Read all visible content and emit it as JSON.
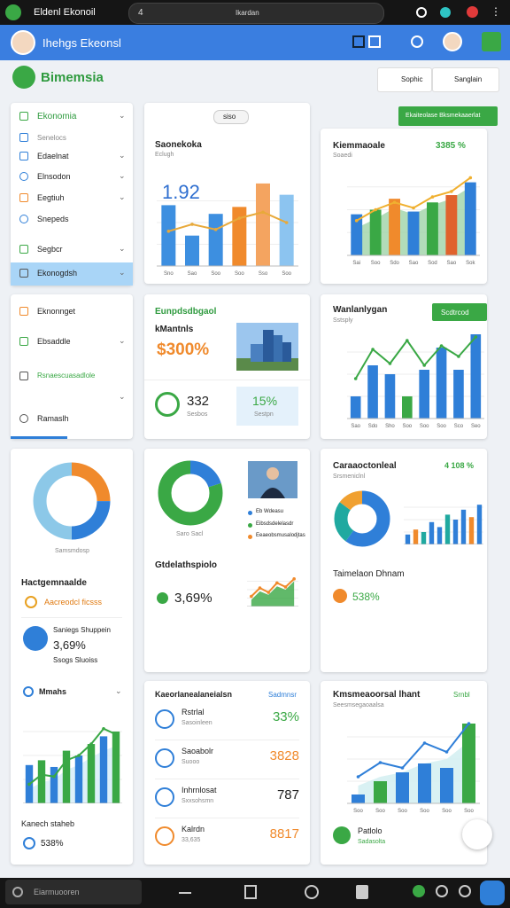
{
  "status_bar": {
    "app": "Eldenl Ekonoil",
    "tab": "4",
    "url": "Ikardan"
  },
  "header": {
    "title": "Ihehgs Ekeonsl"
  },
  "page": {
    "title": "Bimemsia",
    "buttons": [
      "Sophic",
      "Sanglain"
    ],
    "action": "Ekaiteolase Bksmekaaerlat"
  },
  "sidebar_top": [
    "Ekonomia",
    "Senelocs",
    "Edaelnat",
    "Elnsodon",
    "Eegtiuh",
    "Snepeds",
    "Segbcr",
    "Ekonogdsh"
  ],
  "sidebar_bottom": [
    "Eknonnget",
    "Ebsaddle",
    "Rsnaescuasadlole",
    "Ramaslh"
  ],
  "card_bars": {
    "badge": "siso",
    "title": "Saonekoka",
    "subtitle": "Eclugh",
    "value": "1.92",
    "chart": {
      "type": "bar",
      "values": [
        70,
        35,
        60,
        68,
        95,
        82
      ],
      "colors": [
        "#3d8fe0",
        "#3d8fe0",
        "#3d8fe0",
        "#f08a2c",
        "#f4a460",
        "#8cc4f0"
      ],
      "line": [
        40,
        48,
        42,
        55,
        62,
        50
      ],
      "line_color": "#e8a93a",
      "ylim": [
        0,
        100
      ],
      "categories": [
        "Sno",
        "Sao",
        "Soo",
        "Soo",
        "Sso",
        "Soo"
      ]
    }
  },
  "card_multi": {
    "title": "Kiemmaoale",
    "value": "3385 %",
    "subtitle": "Soaedi",
    "chart": {
      "type": "bar",
      "values": [
        45,
        50,
        62,
        48,
        58,
        66,
        80
      ],
      "colors": [
        "#2f7fd8",
        "#3aa845",
        "#f08a2c",
        "#2f7fd8",
        "#3aa845",
        "#e0622c",
        "#2f7fd8"
      ],
      "area": [
        30,
        40,
        52,
        45,
        55,
        62,
        75
      ],
      "area_color": "#9fd3a8",
      "line": [
        38,
        50,
        58,
        52,
        64,
        70,
        85
      ],
      "line_color": "#f0b030",
      "ylim": [
        0,
        100
      ],
      "categories": [
        "Sai",
        "Soo",
        "Sdo",
        "Sao",
        "Sod",
        "Sao",
        "Sok"
      ]
    }
  },
  "card_kpi": {
    "title": "Eunpdsdbgaol",
    "label": "kMantnls",
    "value": "$300%",
    "count": "332",
    "count_label": "Sesbos",
    "rate": "15%",
    "rate_label": "Sestpn"
  },
  "card_barline": {
    "title": "Wanlanlygan",
    "subtitle": "Sstsply",
    "button": "Scdtrcod",
    "chart": {
      "type": "bar",
      "values": [
        25,
        60,
        50,
        25,
        55,
        80,
        55,
        95
      ],
      "colors": [
        "#2f7fd8",
        "#2f7fd8",
        "#2f7fd8",
        "#3aa845",
        "#2f7fd8",
        "#2f7fd8",
        "#2f7fd8",
        "#2f7fd8"
      ],
      "line": [
        45,
        78,
        62,
        88,
        60,
        82,
        70,
        92
      ],
      "line_color": "#3aa845",
      "ylim": [
        0,
        100
      ],
      "categories": [
        "Sao",
        "Sdo",
        "Sho",
        "Soo",
        "Soo",
        "Soo",
        "Sco",
        "Seo"
      ]
    }
  },
  "card_left": {
    "donut": {
      "type": "donut",
      "values": [
        25,
        25,
        50
      ],
      "colors": [
        "#f08a2c",
        "#2f7fd8",
        "#8cc8e8"
      ]
    },
    "donut_label": "Samsmdosp",
    "heading": "Hactgemnaalde",
    "tag": "Aacreodcl ficsss",
    "stat_title": "Saniegs Shuppein",
    "stat_value": "3,69%",
    "stat_label": "Ssogs Sluoiss",
    "section": "Mmahs",
    "chart": {
      "type": "bar",
      "values": [
        40,
        45,
        38,
        55,
        50,
        62,
        70,
        75
      ],
      "colors": [
        "#2f7fd8",
        "#3aa845",
        "#2f7fd8",
        "#3aa845",
        "#2f7fd8",
        "#3aa845",
        "#2f7fd8",
        "#3aa845"
      ],
      "line": [
        20,
        30,
        28,
        45,
        50,
        62,
        78,
        72
      ],
      "line_color": "#3aa845",
      "area": [
        15,
        22,
        25,
        35,
        40,
        48,
        55,
        60
      ],
      "area_color": "#d4ecf7",
      "ylim": [
        0,
        100
      ]
    },
    "footer": "Kanech staheb",
    "footer_value": "538%"
  },
  "card_donut": {
    "donut": {
      "type": "donut",
      "values": [
        20,
        80
      ],
      "colors": [
        "#2f7fd8",
        "#3aa845"
      ]
    },
    "donut_label": "Saro Sacl",
    "legend": [
      "Eb Wdeasu",
      "Eibsdsdelelasdr",
      "Eeaeobsmusalodjtas"
    ],
    "heading": "Gtdelathspiolo",
    "value": "3,69%",
    "chart": {
      "type": "bar",
      "values": [],
      "area": [
        20,
        45,
        35,
        60,
        50,
        75
      ],
      "area_color": "#3aa845",
      "line": [
        30,
        55,
        42,
        70,
        58,
        82
      ],
      "line_color": "#f08a2c",
      "ylim": [
        0,
        100
      ]
    }
  },
  "card_combo": {
    "title": "Caraaoctonleal",
    "value": "4 108 %",
    "subtitle": "Srsmeniclnl",
    "donut": {
      "type": "donut",
      "values": [
        60,
        25,
        15
      ],
      "colors": [
        "#2f7fd8",
        "#20a9a0",
        "#f0a030"
      ]
    },
    "chart": {
      "type": "bar",
      "values": [
        20,
        30,
        25,
        45,
        35,
        60,
        50,
        70,
        55,
        80
      ],
      "colors": [
        "#2f7fd8",
        "#f08a2c",
        "#20a9a0",
        "#2f7fd8",
        "#2f7fd8",
        "#20a9a0",
        "#2f7fd8",
        "#2f7fd8",
        "#f08a2c",
        "#2f7fd8"
      ],
      "ylim": [
        0,
        100
      ]
    },
    "footer": "Taimelaon Dhnam",
    "footer_value": "538%"
  },
  "card_list": {
    "title": "Kaeorlanealaneialsn",
    "link": "Sadmnsr",
    "rows": [
      [
        "Rstrlal",
        "Sasoinleen",
        "33%"
      ],
      [
        "Saoabolr",
        "Suooo",
        "3828"
      ],
      [
        "Inhrnlosat",
        "Sxxsohsmn",
        "787"
      ],
      [
        "Kalrdn",
        "33,635",
        "8817"
      ]
    ]
  },
  "card_line": {
    "title": "Kmsmeaoorsal lhant",
    "subtitle": "Seesmsegaoaalsa",
    "link": "Srnbl",
    "chart": {
      "type": "bar",
      "values": [
        10,
        25,
        35,
        45,
        40,
        90
      ],
      "colors": [
        "#2f7fd8",
        "#3aa845",
        "#2f7fd8",
        "#2f7fd8",
        "#2f7fd8",
        "#3aa845"
      ],
      "area": [
        20,
        30,
        35,
        45,
        50,
        70
      ],
      "area_color": "#cfeef0",
      "line": [
        30,
        46,
        40,
        68,
        58,
        90
      ],
      "line_color": "#2f7fd8",
      "ylim": [
        0,
        100
      ],
      "categories": [
        "Soo",
        "Soo",
        "Soo",
        "Soo",
        "Soo",
        "Soo"
      ]
    },
    "footer": "Patlolo",
    "footer_label": "Sadasolta"
  },
  "bottom_bar": {
    "search": "Eiarmuooren"
  }
}
